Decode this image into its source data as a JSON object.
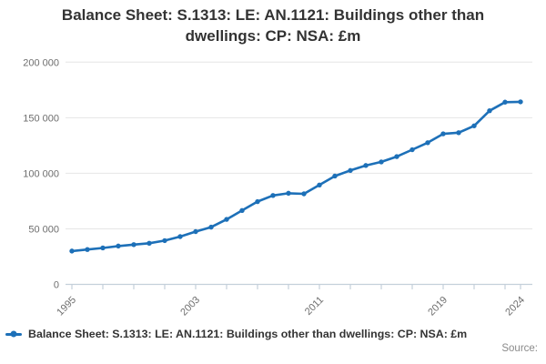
{
  "title": "Balance Sheet: S.1313: LE: AN.1121: Buildings other than dwellings: CP: NSA: £m",
  "legend": {
    "label": "Balance Sheet: S.1313: LE: AN.1121: Buildings other than dwellings: CP: NSA: £m"
  },
  "source": {
    "label": "Source:"
  },
  "colors": {
    "series": "#1d70b8",
    "grid": "#e6e6e6",
    "axis": "#c4d0da",
    "tick_label": "#6e6e6e",
    "title": "#333333"
  },
  "chart_data": {
    "type": "line",
    "title": "Balance Sheet: S.1313: LE: AN.1121: Buildings other than dwellings: CP: NSA: £m",
    "xlabel": "",
    "ylabel": "",
    "x": [
      1995,
      1996,
      1997,
      1998,
      1999,
      2000,
      2001,
      2002,
      2003,
      2004,
      2005,
      2006,
      2007,
      2008,
      2009,
      2010,
      2011,
      2012,
      2013,
      2014,
      2015,
      2016,
      2017,
      2018,
      2019,
      2020,
      2021,
      2022,
      2023,
      2024
    ],
    "values": [
      30000,
      31400,
      32800,
      34500,
      35800,
      37000,
      39400,
      43000,
      47500,
      51500,
      58500,
      66500,
      74500,
      80000,
      82000,
      81500,
      89400,
      97500,
      102500,
      107000,
      110200,
      115000,
      121200,
      127500,
      135500,
      136500,
      142700,
      156300,
      164000,
      164300
    ],
    "ylim": [
      0,
      200000
    ],
    "yticks": [
      {
        "v": 0,
        "label": "0"
      },
      {
        "v": 50000,
        "label": "50 000"
      },
      {
        "v": 100000,
        "label": "100 000"
      },
      {
        "v": 150000,
        "label": "150 000"
      },
      {
        "v": 200000,
        "label": "200 000"
      }
    ],
    "xtick_interval_years": 2,
    "xtick_labeled": [
      1995,
      2003,
      2011,
      2019,
      2024
    ],
    "grid": "horizontal",
    "legend_position": "bottom",
    "marker": "circle"
  }
}
